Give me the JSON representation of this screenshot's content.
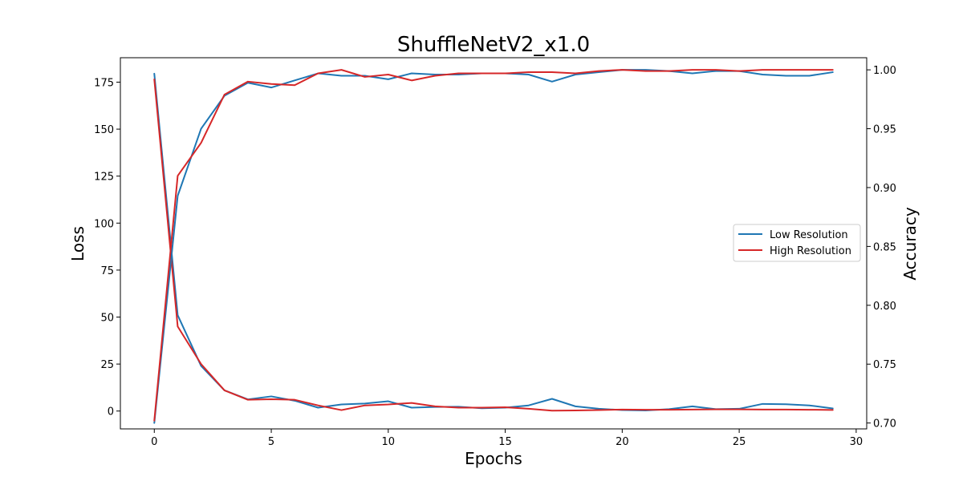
{
  "chart_data": {
    "type": "line",
    "title": "ShuffleNetV2_x1.0",
    "xlabel": "Epochs",
    "ylabel_left": "Loss",
    "ylabel_right": "Accuracy",
    "xlim": [
      -1.45,
      30.45
    ],
    "ylim_left": [
      -9.5,
      188
    ],
    "ylim_right": [
      0.695,
      1.0103
    ],
    "x_ticks": [
      0,
      5,
      10,
      15,
      20,
      25,
      30
    ],
    "y_ticks_left": [
      0,
      25,
      50,
      75,
      100,
      125,
      150,
      175
    ],
    "y_ticks_right": [
      0.7,
      0.75,
      0.8,
      0.85,
      0.9,
      0.95,
      1.0
    ],
    "y_tick_labels_right": [
      "0.70",
      "0.75",
      "0.80",
      "0.85",
      "0.90",
      "0.95",
      "1.00"
    ],
    "grid": false,
    "legend_position": "center-right",
    "x": [
      0,
      1,
      2,
      3,
      4,
      5,
      6,
      7,
      8,
      9,
      10,
      11,
      12,
      13,
      14,
      15,
      16,
      17,
      18,
      19,
      20,
      21,
      22,
      23,
      24,
      25,
      26,
      27,
      28,
      29
    ],
    "series": [
      {
        "name": "Low Resolution",
        "color": "#1f77b4",
        "axis": "left",
        "metric": "loss",
        "values": [
          179.5,
          51,
          24,
          11,
          6.2,
          7.8,
          5.5,
          1.8,
          3.5,
          4,
          5.2,
          1.8,
          2.2,
          2.3,
          1.5,
          1.8,
          3,
          6.5,
          2.5,
          1.2,
          0.5,
          0.3,
          1,
          2.5,
          1,
          1.2,
          3.8,
          3.6,
          3,
          1.4
        ]
      },
      {
        "name": "High Resolution",
        "color": "#d62728",
        "axis": "left",
        "metric": "loss",
        "values": [
          176.5,
          45,
          25,
          11,
          6,
          6.3,
          6,
          3,
          0.5,
          3,
          3.5,
          4.3,
          2.5,
          1.8,
          1.8,
          2,
          1.2,
          0.2,
          0.3,
          0.5,
          0.8,
          0.7,
          0.7,
          0.8,
          0.9,
          0.9,
          0.8,
          0.8,
          0.7,
          0.6
        ]
      },
      {
        "name": "Low Resolution",
        "color": "#1f77b4",
        "axis": "right",
        "metric": "accuracy",
        "values": [
          0.7,
          0.893,
          0.95,
          0.978,
          0.989,
          0.985,
          0.991,
          0.997,
          0.995,
          0.995,
          0.992,
          0.997,
          0.996,
          0.996,
          0.997,
          0.997,
          0.996,
          0.99,
          0.996,
          0.998,
          1.0,
          1.0,
          0.999,
          0.997,
          0.999,
          0.999,
          0.996,
          0.995,
          0.995,
          0.998
        ]
      },
      {
        "name": "High Resolution",
        "color": "#d62728",
        "axis": "right",
        "metric": "accuracy",
        "values": [
          0.702,
          0.91,
          0.938,
          0.979,
          0.99,
          0.988,
          0.987,
          0.997,
          1.0,
          0.994,
          0.996,
          0.991,
          0.995,
          0.997,
          0.997,
          0.997,
          0.998,
          0.998,
          0.997,
          0.999,
          1.0,
          0.999,
          0.999,
          1.0,
          1.0,
          0.999,
          1.0,
          1.0,
          1.0,
          1.0
        ]
      }
    ],
    "legend": [
      {
        "label": "Low Resolution",
        "color": "#1f77b4"
      },
      {
        "label": "High Resolution",
        "color": "#d62728"
      }
    ]
  }
}
